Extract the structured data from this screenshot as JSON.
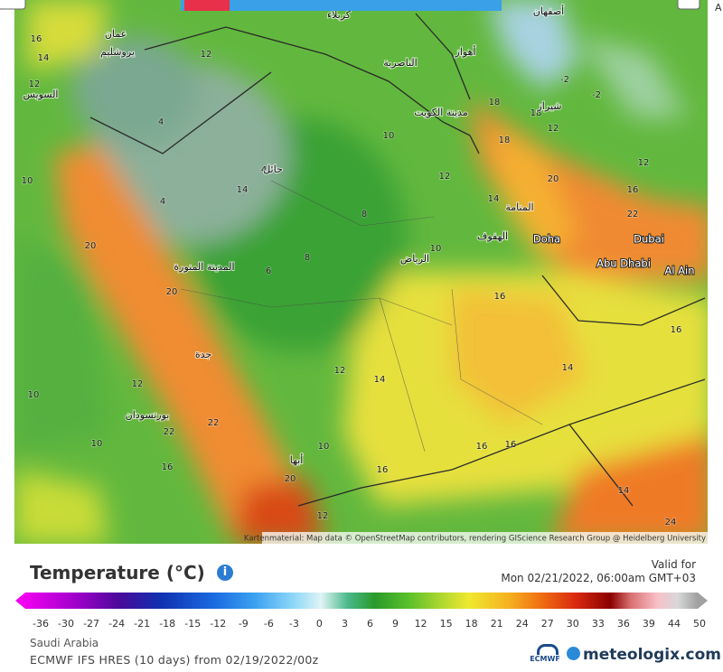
{
  "toolbar": {
    "corner_label": "A"
  },
  "map": {
    "temperatures": [
      16,
      14,
      12,
      10,
      18,
      18,
      20,
      22,
      16,
      16,
      14,
      14,
      12,
      16,
      16,
      16,
      14,
      24,
      22,
      22,
      20,
      20,
      16,
      12,
      10,
      10,
      10,
      12,
      20,
      12,
      10,
      8,
      8,
      6,
      4,
      4,
      4,
      10,
      12,
      14,
      16,
      12,
      -2,
      -2,
      18,
      12,
      14
    ],
    "places": [
      "عمان",
      "يروشليم",
      "السويس",
      "كربلاء",
      "الناصرية",
      "أهواز",
      "مدينة الكويت",
      "حائل",
      "المدينة المنورة",
      "الرياض",
      "الهفوف",
      "المنامة",
      "Doha",
      "Dubai",
      "Abu Dhabi",
      "Al Ain",
      "جدة",
      "بورتسودان",
      "أبها",
      "شيراز",
      "أصفهان"
    ],
    "attribution": "Kartenmaterial: Map data © OpenStreetMap contributors, rendering GIScience Research Group @ Heidelberg University"
  },
  "legend": {
    "title": "Temperature (°C)",
    "info": "i",
    "valid_label": "Valid for",
    "valid_time": "Mon 02/21/2022, 06:00am GMT+03",
    "scale": [
      -36,
      -30,
      -27,
      -24,
      -21,
      -18,
      -15,
      -12,
      -9,
      -6,
      -3,
      0,
      3,
      6,
      9,
      12,
      15,
      18,
      21,
      24,
      27,
      30,
      33,
      36,
      39,
      44,
      50
    ],
    "region": "Saudi Arabia",
    "model": "ECMWF IFS HRES (10 days) from 02/19/2022/00z",
    "ecmwf": "ECMWF",
    "brand": "meteologix.com"
  }
}
